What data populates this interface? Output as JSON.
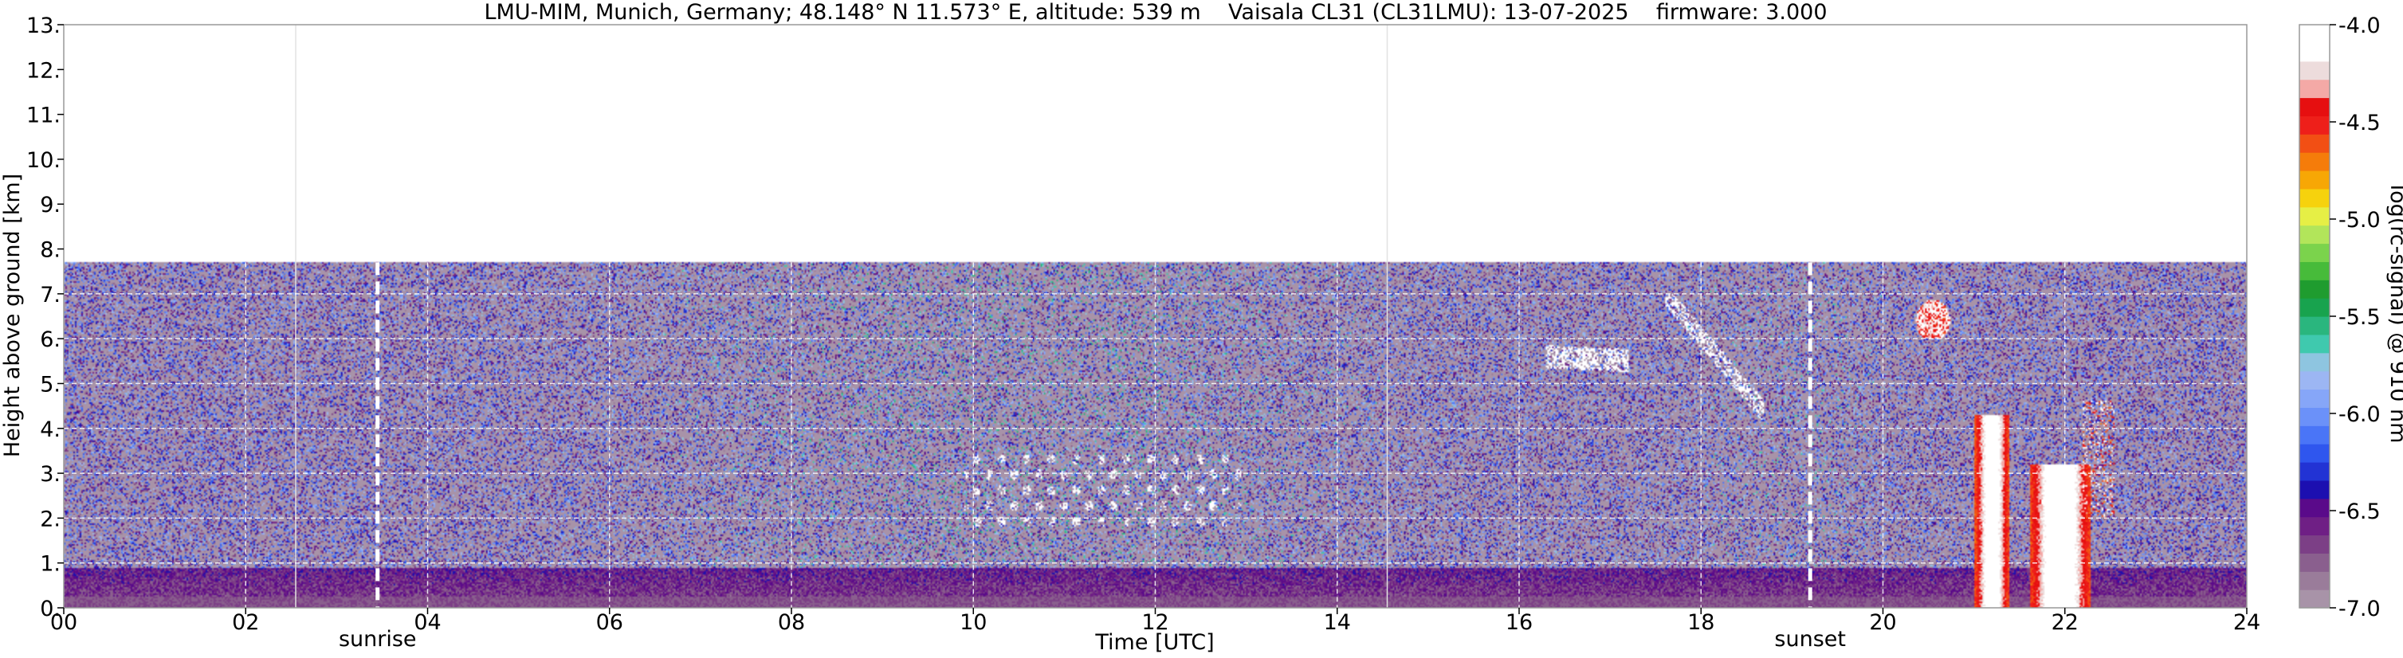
{
  "chart_data": {
    "type": "heatmap",
    "title": "LMU-MIM, Munich, Germany; 48.148° N 11.573° E, altitude: 539 m    Vaisala CL31 (CL31LMU): 13-07-2025    firmware: 3.000",
    "xlabel": "Time [UTC]",
    "ylabel": "Height above ground [km]",
    "xlim": [
      0,
      24
    ],
    "ylim": [
      0,
      13
    ],
    "x_ticks": [
      0,
      2,
      4,
      6,
      8,
      10,
      12,
      14,
      16,
      18,
      20,
      22,
      24
    ],
    "x_tick_labels": [
      "00",
      "02",
      "04",
      "06",
      "08",
      "10",
      "12",
      "14",
      "16",
      "18",
      "20",
      "22",
      "24"
    ],
    "y_ticks": [
      0,
      1,
      2,
      3,
      4,
      5,
      6,
      7,
      8,
      9,
      10,
      11,
      12,
      13
    ],
    "y_tick_labels": [
      "0.",
      "1.",
      "2.",
      "3.",
      "4.",
      "5.",
      "6.",
      "7.",
      "8.",
      "9.",
      "10.",
      "11.",
      "12.",
      "13."
    ],
    "grid": true,
    "data_top_km": 7.7,
    "annotations": [
      {
        "label": "sunrise",
        "x": 3.45
      },
      {
        "label": "sunset",
        "x": 19.2
      }
    ],
    "faint_vertical_lines": [
      2.55,
      14.55
    ],
    "colorbar": {
      "label": "log(rc-signal) @ 910 nm",
      "range": [
        -7.0,
        -4.0
      ],
      "tick_values": [
        -4.0,
        -4.5,
        -5.0,
        -5.5,
        -6.0,
        -6.5,
        -7.0
      ],
      "tick_labels": [
        "-4.0",
        "-4.5",
        "-5.0",
        "-5.5",
        "-6.0",
        "-6.5",
        "-7.0"
      ],
      "colors": [
        "#a893a8",
        "#9a7c9a",
        "#8a5f8e",
        "#7c3f86",
        "#6f1f85",
        "#5a0a8a",
        "#1c0fb0",
        "#2233d4",
        "#2f56ee",
        "#4a75f7",
        "#6b91f9",
        "#86a6f8",
        "#9cb6f3",
        "#8ec5e0",
        "#3fc9ae",
        "#2ab67e",
        "#18a34e",
        "#1f9c2f",
        "#47bb3a",
        "#7bd34c",
        "#b2e55a",
        "#e6ef45",
        "#f6d20d",
        "#f7a705",
        "#f57c0a",
        "#f24f14",
        "#ee1f1a",
        "#e60f10",
        "#f4a9a6",
        "#eddcdc",
        "#ffffff",
        "#ffffff"
      ]
    },
    "features": [
      {
        "name": "boundary-layer aerosol",
        "x_range": [
          0,
          24
        ],
        "height_km": [
          0,
          0.9
        ]
      },
      {
        "name": "clouds",
        "x_range": [
          9.9,
          13.0
        ],
        "height_km": [
          1.8,
          3.5
        ]
      },
      {
        "name": "clouds",
        "x_range": [
          16.3,
          17.2
        ],
        "height_km": [
          5.0,
          6.1
        ]
      },
      {
        "name": "clouds",
        "x_range": [
          17.6,
          18.7
        ],
        "height_km": [
          4.2,
          7.0
        ]
      },
      {
        "name": "cloud",
        "x_range": [
          20.3,
          20.9
        ],
        "height_km": [
          6.0,
          7.4
        ]
      },
      {
        "name": "rain shafts",
        "x_range": [
          20.9,
          22.7
        ],
        "height_km": [
          0,
          4.5
        ]
      }
    ]
  }
}
